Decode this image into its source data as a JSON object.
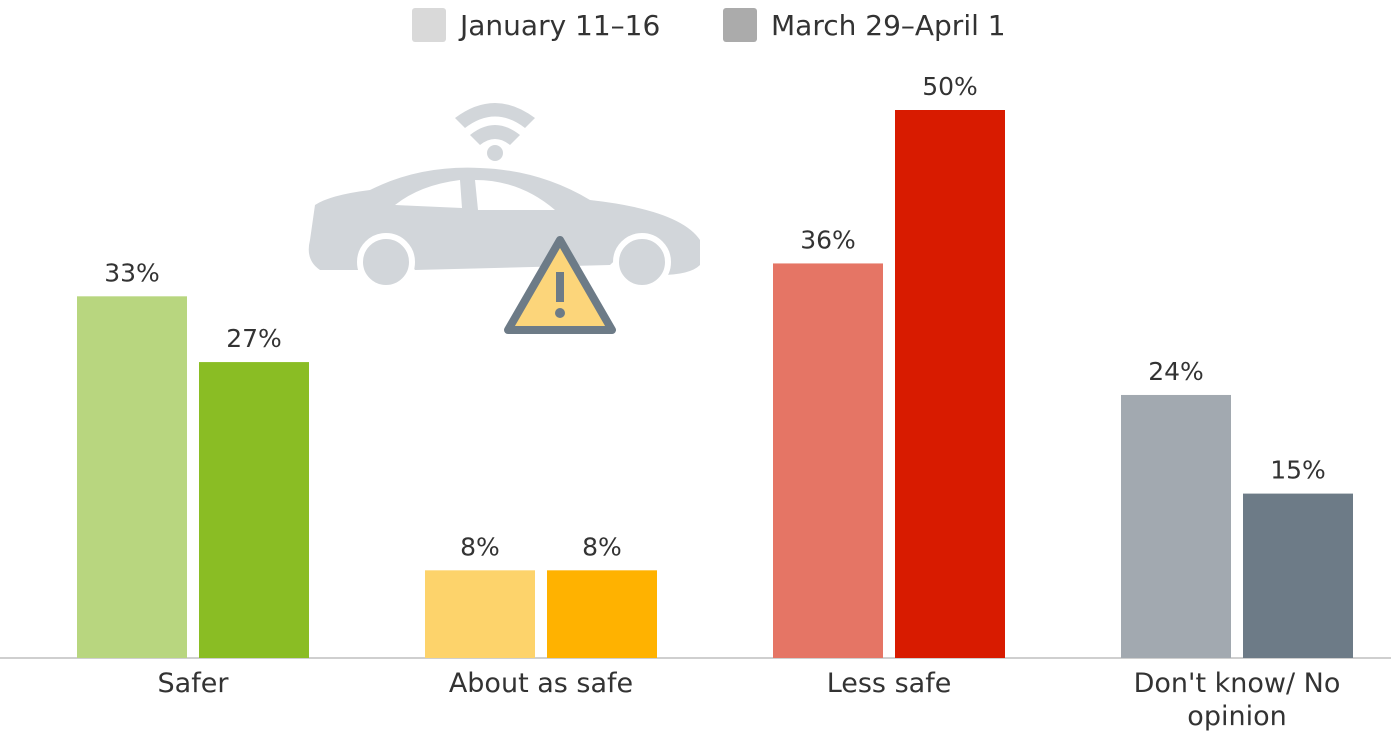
{
  "chart_data": {
    "type": "bar",
    "categories": [
      "Safer",
      "About as safe",
      "Less safe",
      "Don't know/ No opinion"
    ],
    "series": [
      {
        "name": "January 11–16",
        "color": "#d9d9d9",
        "bar_colors": [
          "#b8d67f",
          "#fdd36b",
          "#e57565",
          "#a2a9b0"
        ],
        "values": [
          33,
          8,
          36,
          24
        ],
        "value_labels": [
          "33%",
          "8%",
          "36%",
          "24%"
        ]
      },
      {
        "name": "March 29–April 1",
        "color": "#ababab",
        "bar_colors": [
          "#8abd24",
          "#ffb200",
          "#d81b00",
          "#6d7b87"
        ],
        "values": [
          27,
          8,
          50,
          15
        ],
        "value_labels": [
          "27%",
          "8%",
          "50%",
          "15%"
        ]
      }
    ],
    "ylim": [
      0,
      50
    ]
  }
}
